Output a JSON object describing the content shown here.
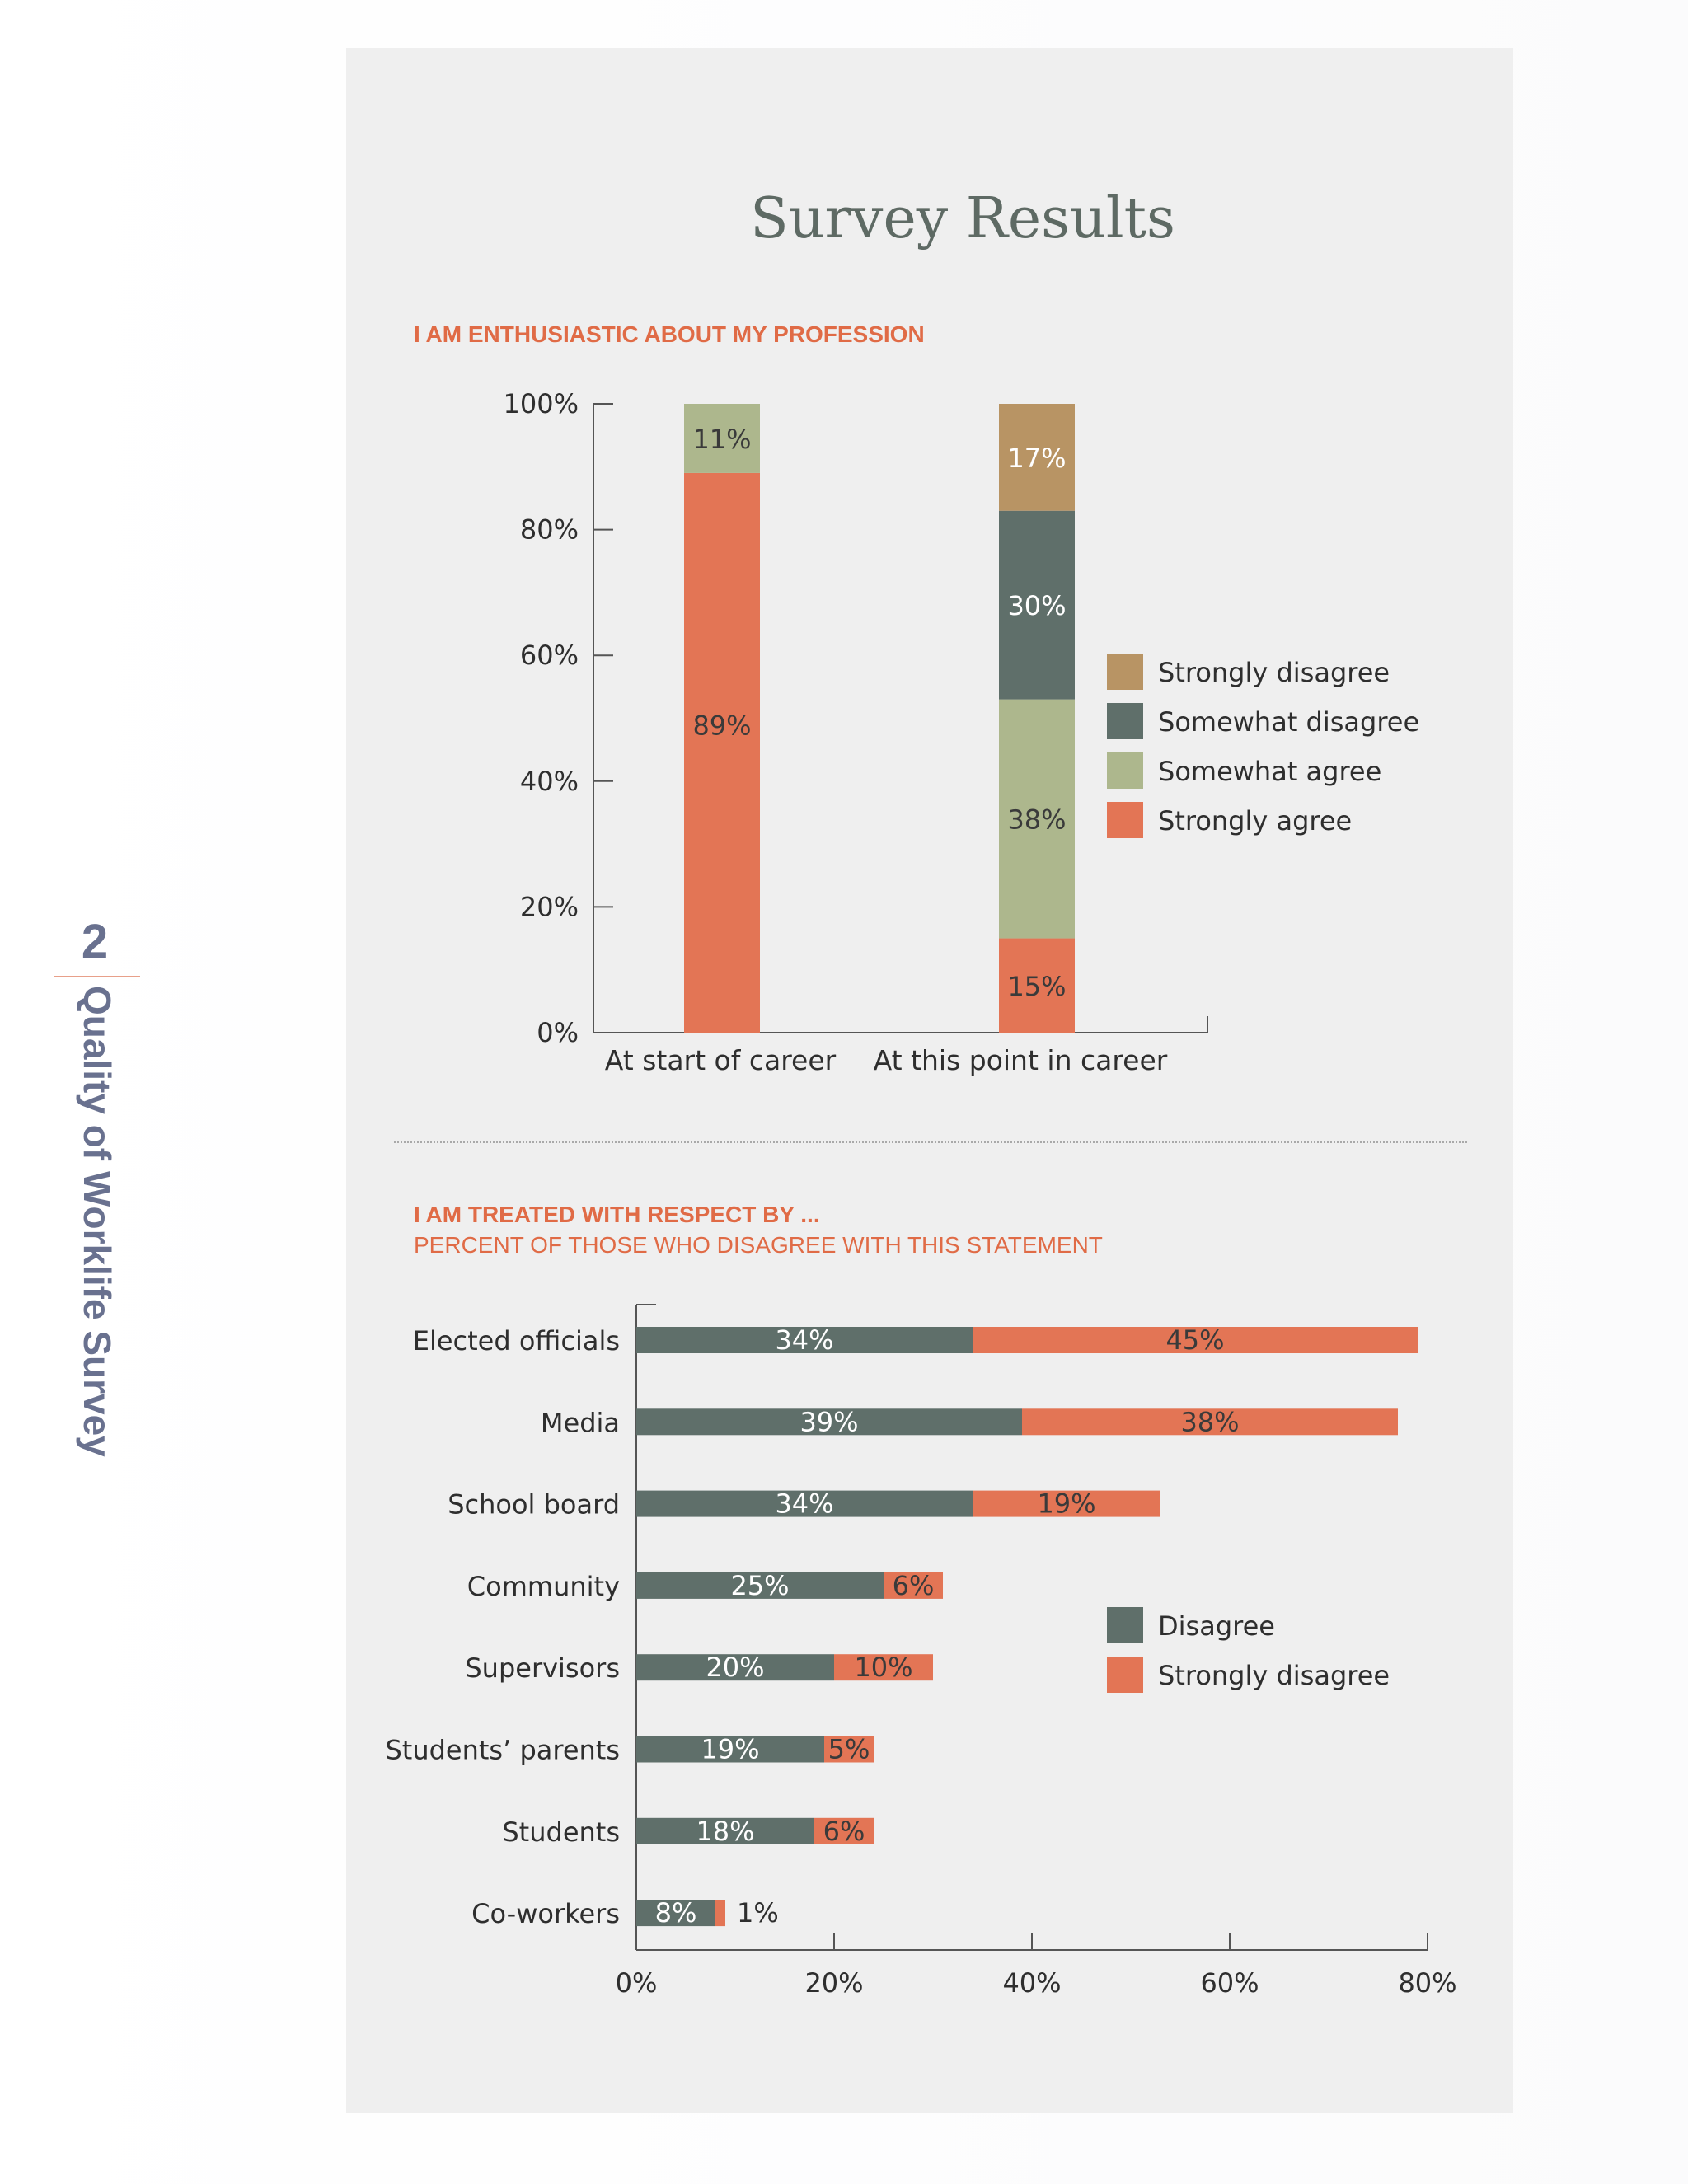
{
  "side": {
    "number": "2",
    "title": "Quality of Worklife Survey"
  },
  "page_title": "Survey Results",
  "colors": {
    "strongly_disagree_tan": "#b89464",
    "somewhat_disagree_gray": "#5f6f6a",
    "somewhat_agree_green": "#adb78d",
    "strongly_agree_orange": "#e37555",
    "heading_orange": "#e06b46",
    "side_blue": "#69718f"
  },
  "chart_data": [
    {
      "type": "bar",
      "stacked": true,
      "orientation": "vertical",
      "title": "I AM ENTHUSIASTIC ABOUT MY PROFESSION",
      "categories": [
        "At start of career",
        "At this point in career"
      ],
      "series": [
        {
          "name": "Strongly agree",
          "values": [
            89,
            15
          ],
          "labels": [
            "89%",
            "15%"
          ],
          "color": "#e37555",
          "label_color": "#3a3a3a"
        },
        {
          "name": "Somewhat agree",
          "values": [
            11,
            38
          ],
          "labels": [
            "11%",
            "38%"
          ],
          "color": "#adb78d",
          "label_color": "#3a3a3a"
        },
        {
          "name": "Somewhat disagree",
          "values": [
            0,
            30
          ],
          "labels": [
            "",
            "30%"
          ],
          "color": "#5f6f6a",
          "label_color": "#ffffff"
        },
        {
          "name": "Strongly disagree",
          "values": [
            0,
            17
          ],
          "labels": [
            "",
            "17%"
          ],
          "color": "#b89464",
          "label_color": "#ffffff"
        }
      ],
      "legend_order": [
        "Strongly disagree",
        "Somewhat disagree",
        "Somewhat agree",
        "Strongly agree"
      ],
      "yticks": [
        "0%",
        "20%",
        "40%",
        "60%",
        "80%",
        "100%"
      ],
      "ylim": [
        0,
        100
      ],
      "legend_position": "right"
    },
    {
      "type": "bar",
      "stacked": true,
      "orientation": "horizontal",
      "title": "I AM TREATED WITH RESPECT BY ...",
      "subtitle": "PERCENT OF THOSE WHO DISAGREE WITH THIS STATEMENT",
      "categories": [
        "Elected officials",
        "Media",
        "School board",
        "Community",
        "Supervisors",
        "Students’ parents",
        "Students",
        "Co-workers"
      ],
      "series": [
        {
          "name": "Disagree",
          "values": [
            34,
            39,
            34,
            25,
            20,
            19,
            18,
            8
          ],
          "labels": [
            "34%",
            "39%",
            "34%",
            "25%",
            "20%",
            "19%",
            "18%",
            "8%"
          ],
          "color": "#5f6f6a",
          "label_color": "#ffffff"
        },
        {
          "name": "Strongly disagree",
          "values": [
            45,
            38,
            19,
            6,
            10,
            5,
            6,
            1
          ],
          "labels": [
            "45%",
            "38%",
            "19%",
            "6%",
            "10%",
            "5%",
            "6%",
            "1%"
          ],
          "color": "#e37555",
          "label_color": "#3a3a3a"
        }
      ],
      "xticks": [
        "0%",
        "20%",
        "40%",
        "60%",
        "80%"
      ],
      "xlim": [
        0,
        80
      ],
      "legend_position": "right"
    }
  ]
}
